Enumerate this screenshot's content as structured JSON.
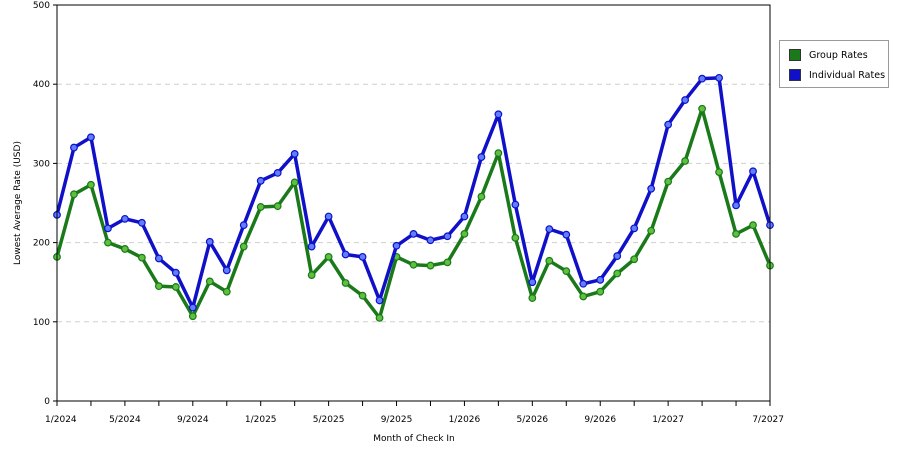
{
  "chart_data": {
    "type": "line",
    "title": "",
    "xlabel": "Month of Check In",
    "ylabel": "Lowest Average Rate (USD)",
    "ylim": [
      0,
      500
    ],
    "yticks": [
      0,
      100,
      200,
      300,
      400,
      500
    ],
    "x_range": [
      "1/2024",
      "7/2027"
    ],
    "xtick_labels": [
      "1/2024",
      "5/2024",
      "9/2024",
      "1/2025",
      "5/2025",
      "9/2025",
      "1/2026",
      "5/2026",
      "9/2026",
      "1/2027",
      "7/2027"
    ],
    "grid": "horizontal dashed",
    "legend_position": "right",
    "series": [
      {
        "name": "Group Rates",
        "color": "#1a7a1a",
        "points": [
          [
            "1/2024",
            182
          ],
          [
            "2/2024",
            261
          ],
          [
            "3/2024",
            273
          ],
          [
            "4/2024",
            200
          ],
          [
            "5/2024",
            192
          ],
          [
            "6/2024",
            181
          ],
          [
            "7/2024",
            145
          ],
          [
            "8/2024",
            144
          ],
          [
            "9/2024",
            107
          ],
          [
            "10/2024",
            151
          ],
          [
            "11/2024",
            138
          ],
          [
            "12/2024",
            195
          ],
          [
            "1/2025",
            245
          ],
          [
            "2/2025",
            246
          ],
          [
            "3/2025",
            276
          ],
          [
            "4/2025",
            159
          ],
          [
            "5/2025",
            182
          ],
          [
            "6/2025",
            149
          ],
          [
            "7/2025",
            133
          ],
          [
            "8/2025",
            105
          ],
          [
            "9/2025",
            182
          ],
          [
            "10/2025",
            172
          ],
          [
            "11/2025",
            171
          ],
          [
            "12/2025",
            175
          ],
          [
            "1/2026",
            211
          ],
          [
            "2/2026",
            258
          ],
          [
            "3/2026",
            313
          ],
          [
            "4/2026",
            206
          ],
          [
            "5/2026",
            130
          ],
          [
            "6/2026",
            177
          ],
          [
            "7/2026",
            164
          ],
          [
            "8/2026",
            132
          ],
          [
            "9/2026",
            138
          ],
          [
            "10/2026",
            161
          ],
          [
            "11/2026",
            179
          ],
          [
            "12/2026",
            215
          ],
          [
            "1/2027",
            277
          ],
          [
            "2/2027",
            303
          ],
          [
            "3/2027",
            369
          ],
          [
            "4/2027",
            289
          ],
          [
            "5/2027",
            211
          ],
          [
            "6/2027",
            222
          ],
          [
            "7/2027",
            171
          ]
        ]
      },
      {
        "name": "Individual Rates",
        "color": "#1010c8",
        "points": [
          [
            "1/2024",
            235
          ],
          [
            "2/2024",
            320
          ],
          [
            "3/2024",
            333
          ],
          [
            "4/2024",
            218
          ],
          [
            "5/2024",
            230
          ],
          [
            "6/2024",
            225
          ],
          [
            "7/2024",
            180
          ],
          [
            "8/2024",
            162
          ],
          [
            "9/2024",
            118
          ],
          [
            "10/2024",
            201
          ],
          [
            "11/2024",
            165
          ],
          [
            "12/2024",
            222
          ],
          [
            "1/2025",
            278
          ],
          [
            "2/2025",
            288
          ],
          [
            "3/2025",
            312
          ],
          [
            "4/2025",
            195
          ],
          [
            "5/2025",
            233
          ],
          [
            "6/2025",
            185
          ],
          [
            "7/2025",
            182
          ],
          [
            "8/2025",
            127
          ],
          [
            "9/2025",
            196
          ],
          [
            "10/2025",
            211
          ],
          [
            "11/2025",
            203
          ],
          [
            "12/2025",
            208
          ],
          [
            "1/2026",
            233
          ],
          [
            "2/2026",
            308
          ],
          [
            "3/2026",
            362
          ],
          [
            "4/2026",
            248
          ],
          [
            "5/2026",
            150
          ],
          [
            "6/2026",
            217
          ],
          [
            "7/2026",
            210
          ],
          [
            "8/2026",
            148
          ],
          [
            "9/2026",
            153
          ],
          [
            "10/2026",
            183
          ],
          [
            "11/2026",
            218
          ],
          [
            "12/2026",
            268
          ],
          [
            "1/2027",
            349
          ],
          [
            "2/2027",
            380
          ],
          [
            "3/2027",
            407
          ],
          [
            "4/2027",
            408
          ],
          [
            "5/2027",
            247
          ],
          [
            "6/2027",
            290
          ],
          [
            "7/2027",
            222
          ]
        ]
      }
    ]
  }
}
